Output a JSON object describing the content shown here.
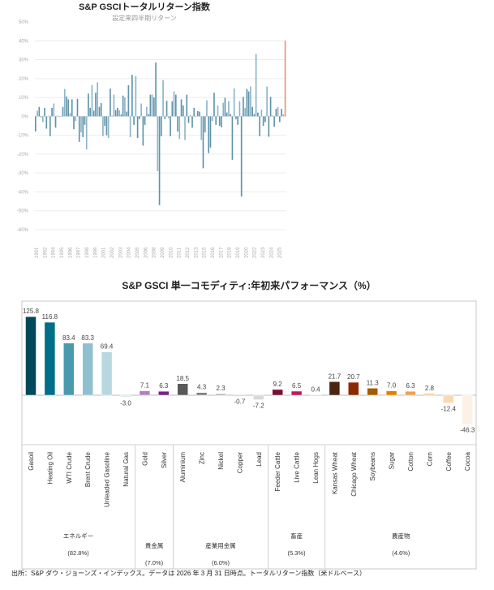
{
  "chart_data": [
    {
      "type": "bar",
      "title": "S&P GSCIトータルリターン指数",
      "subtitle": "設定来四半期リターン",
      "ylim": [
        -60,
        50
      ],
      "yticks": [
        "50%",
        "40%",
        "30%",
        "20%",
        "10%",
        "0%",
        "-10%",
        "-20%",
        "-30%",
        "-40%",
        "-50%",
        "-60%"
      ],
      "xticks": [
        "1991",
        "1992",
        "1994",
        "1995",
        "1996",
        "1997",
        "1998",
        "1999",
        "2001",
        "2002",
        "2003",
        "2004",
        "2005",
        "2006",
        "2008",
        "2009",
        "2010",
        "2011",
        "2012",
        "2013",
        "2015",
        "2016",
        "2017",
        "2018",
        "2019",
        "2020",
        "2022",
        "2023",
        "2024",
        "2025"
      ],
      "grid": true,
      "colors": {
        "bar": "#5f93ab",
        "bar_light": "#8db5c7",
        "latest": "#e8956e"
      },
      "values": [
        -8,
        3,
        5,
        -0.5,
        -3,
        4.5,
        -6.5,
        0.3,
        -10.5,
        4.5,
        6.8,
        -6,
        0.3,
        -0.3,
        0.2,
        5,
        14.5,
        10.5,
        9,
        1.8,
        9,
        -6.8,
        -2.5,
        9.3,
        -13.5,
        -8.5,
        -11,
        -4.5,
        -17.5,
        12,
        4.5,
        16.5,
        3,
        12.5,
        18,
        5,
        7,
        -10.5,
        -5,
        -10,
        -11.5,
        14.7,
        0.3,
        11.5,
        3.3,
        4.5,
        3.3,
        1,
        11,
        10,
        2.5,
        16.5,
        -11,
        22,
        -4.5,
        21.3,
        -11.5,
        -1.5,
        6.8,
        -15.5,
        -4.5,
        5,
        1.2,
        11.5,
        11.5,
        10,
        28.5,
        -29,
        -47,
        -10.5,
        19.2,
        -1.5,
        8.2,
        -1,
        -10.5,
        8,
        13.2,
        11.5,
        -8,
        -12,
        9,
        5.8,
        -12.5,
        11.5,
        -3.5,
        0.7,
        -6,
        4.5,
        -0.3,
        2.8,
        2.5,
        -12.5,
        -27.5,
        -8.5,
        8.5,
        -19.5,
        -16.5,
        -2.5,
        12.5,
        -4.5,
        5.8,
        -5,
        -5.8,
        7.2,
        9.8,
        2,
        8,
        1.2,
        -23,
        14.8,
        -1.5,
        -4.5,
        8,
        -42.5,
        10.3,
        4.5,
        14.5,
        13.2,
        15.8,
        5,
        1.2,
        33,
        2,
        -10.5,
        3.5,
        -5,
        -3,
        15.8,
        -10.8,
        10.3,
        0.5,
        -5.5,
        4,
        5,
        -3,
        4,
        1,
        40
      ]
    },
    {
      "type": "bar",
      "title": "S&P GSCI 単一コモディティ:年初来パフォーマンス（%）",
      "categories": [
        "Gasoil",
        "Heating Oil",
        "WTI Crude",
        "Brent Crude",
        "Unleaded Gasoline",
        "Natural Gas",
        "Gold",
        "Silver",
        "Aluminium",
        "Zinc",
        "Nickel",
        "Copper",
        "Lead",
        "Feeder Cattle",
        "Live Cattle",
        "Lean Hogs",
        "Kansas Wheat",
        "Chicago Wheat",
        "Soybeans",
        "Sugar",
        "Cotton",
        "Corn",
        "Coffee",
        "Cocoa"
      ],
      "values": [
        125.8,
        116.8,
        83.4,
        83.3,
        69.4,
        -3.0,
        7.1,
        6.3,
        18.5,
        4.3,
        2.3,
        -0.7,
        -7.2,
        9.2,
        6.5,
        0.4,
        21.7,
        20.7,
        11.3,
        7.0,
        6.3,
        2.8,
        -12.4,
        -46.3
      ],
      "labels": [
        "125.8",
        "116.8",
        "83.4",
        "83.3",
        "69.4",
        "-3.0",
        "7.1",
        "6.3",
        "18.5",
        "4.3",
        "2.3",
        "-0.7",
        "-7.2",
        "9.2",
        "6.5",
        "0.4",
        "21.7",
        "20.7",
        "11.3",
        "7.0",
        "6.3",
        "2.8",
        "-12.4",
        "-46.3"
      ],
      "colors": [
        "#00485a",
        "#006e88",
        "#4a9aae",
        "#8fc0cf",
        "#b8d8e0",
        "#dbeaf0",
        "#b57fbf",
        "#7a1f82",
        "#595959",
        "#808080",
        "#a6a6a6",
        "#c8c8c8",
        "#d9d9d9",
        "#7a0f35",
        "#c2185b",
        "#f0b8c8",
        "#4a2511",
        "#8b2a00",
        "#a65c00",
        "#e87d00",
        "#f0a050",
        "#f7c890",
        "#f9d9b0",
        "#fdf0e4"
      ],
      "groups": [
        {
          "name": "エネルギー",
          "weight": "(82.8%)",
          "count": 6
        },
        {
          "name": "貴金属",
          "weight": "(7.0%)",
          "count": 2
        },
        {
          "name": "産業用金属",
          "weight": "(6.0%)",
          "count": 5
        },
        {
          "name": "畜産",
          "weight": "(5.3%)",
          "count": 3
        },
        {
          "name": "農産物",
          "weight": "(4.6%)",
          "count": 8
        }
      ]
    }
  ],
  "footer": "出所：S&P ダウ・ジョーンズ・インデックス。データは 2026 年 3 月 31 日時点。トータルリターン指数（米ドルベース）"
}
